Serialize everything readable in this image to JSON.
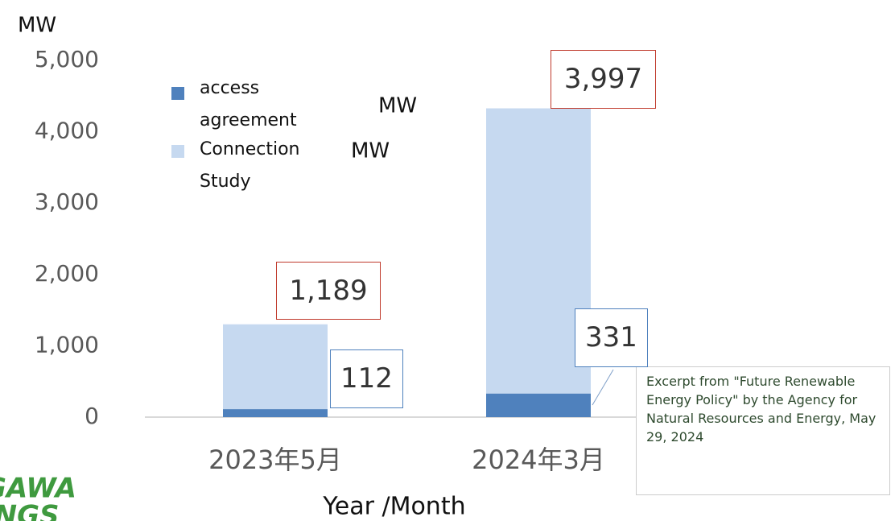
{
  "chart_data": {
    "type": "stacked_bar",
    "y_label": "MW",
    "x_label": "Year /Month",
    "categories": [
      "2023年5月",
      "2024年3月"
    ],
    "series": [
      {
        "name": "access agreement",
        "color": "#4f81bd",
        "values": [
          112,
          331
        ],
        "value_labels": [
          "112",
          "331"
        ],
        "label_border": "#4f81bd"
      },
      {
        "name": "Connection Study",
        "color": "#c6d9f0",
        "values": [
          1189,
          3997
        ],
        "value_labels": [
          "1,189",
          "3,997"
        ],
        "label_border": "#c0392b"
      }
    ],
    "legend_unit": "MW",
    "ylim": [
      0,
      5000
    ],
    "yticks": [
      0,
      {
        "value": 1000,
        "label": "1,000"
      },
      {
        "value": 2000,
        "label": "2,000"
      },
      {
        "value": 3000,
        "label": "3,000"
      },
      {
        "value": 4000,
        "label": "4,000"
      },
      {
        "value": 5000,
        "label": "5,000"
      }
    ],
    "note": "Excerpt from \"Future Renewable Energy Policy\" by the Agency for Natural Resources and Energy, May 29, 2024",
    "logo": [
      "GAWA",
      "INGS"
    ]
  }
}
